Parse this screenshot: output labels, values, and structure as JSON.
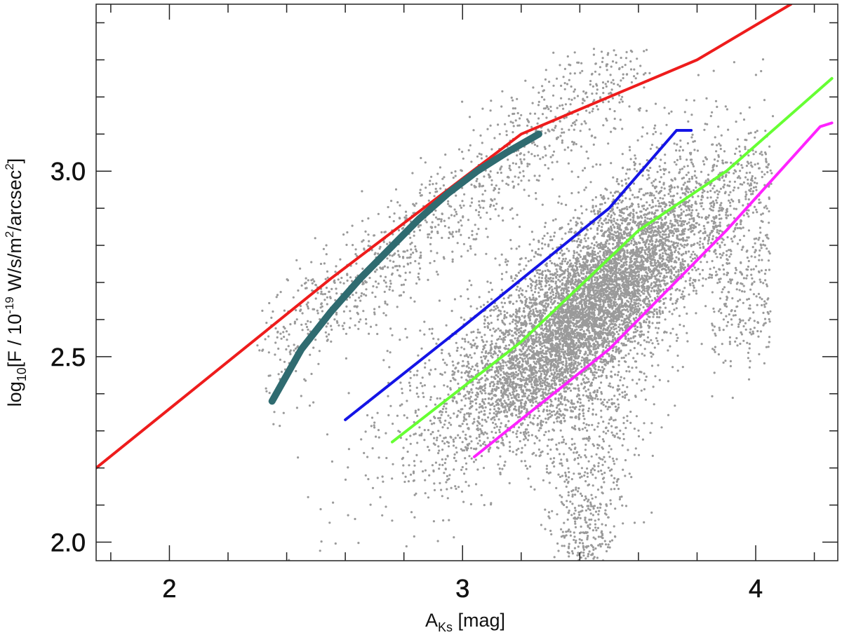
{
  "chart_data": {
    "type": "scatter",
    "title": "",
    "xlabel": {
      "main": "A",
      "subscript": "Ks",
      "rest": " [mag]"
    },
    "ylabel": {
      "p1": "log",
      "p1_sub": "10",
      "p2": "[F / 10",
      "p2_sup": "-19",
      "p3": " W/s/m",
      "p3_sup": "2",
      "p4": "/arcsec",
      "p4_sup": "2",
      "p5": "]"
    },
    "xlim": [
      1.75,
      4.28
    ],
    "ylim": [
      1.95,
      3.45
    ],
    "x_major_ticks": [
      2,
      3,
      4
    ],
    "x_tick_labels": [
      "2",
      "3",
      "4"
    ],
    "x_minor_step": 0.2,
    "y_major_ticks": [
      2.0,
      2.5,
      3.0
    ],
    "y_tick_labels": [
      "2.0",
      "2.5",
      "3.0"
    ],
    "y_minor_step": 0.1,
    "scatter": {
      "name": "observed pixels",
      "color": "#9a9a9a",
      "approx_points": 9000,
      "bulk_center": [
        3.45,
        2.62
      ],
      "extent_x": [
        2.32,
        4.05
      ],
      "extent_y": [
        1.95,
        3.33
      ]
    },
    "series": [
      {
        "name": "red line",
        "color": "#ee1c1c",
        "width": 4,
        "x": [
          1.75,
          2.55,
          3.2,
          3.5,
          3.8,
          4.12
        ],
        "y": [
          2.2,
          2.71,
          3.1,
          3.2,
          3.3,
          3.45
        ]
      },
      {
        "name": "teal curve",
        "color": "#2f6b70",
        "width": 10,
        "x": [
          2.35,
          2.45,
          2.55,
          2.65,
          2.75,
          2.85,
          2.95,
          3.05,
          3.15,
          3.26
        ],
        "y": [
          2.38,
          2.52,
          2.62,
          2.71,
          2.79,
          2.87,
          2.94,
          3.0,
          3.05,
          3.1
        ]
      },
      {
        "name": "blue line",
        "color": "#1414e6",
        "width": 4,
        "x": [
          2.6,
          3.0,
          3.5,
          3.73,
          3.78
        ],
        "y": [
          2.33,
          2.58,
          2.9,
          3.11,
          3.11
        ]
      },
      {
        "name": "green line",
        "color": "#66ff33",
        "width": 4,
        "x": [
          2.76,
          3.2,
          3.6,
          3.9,
          4.26
        ],
        "y": [
          2.27,
          2.54,
          2.84,
          3.0,
          3.25
        ]
      },
      {
        "name": "magenta line",
        "color": "#ff22ff",
        "width": 4,
        "x": [
          3.04,
          3.5,
          3.9,
          4.22,
          4.26
        ],
        "y": [
          2.23,
          2.52,
          2.84,
          3.12,
          3.13
        ]
      }
    ]
  }
}
